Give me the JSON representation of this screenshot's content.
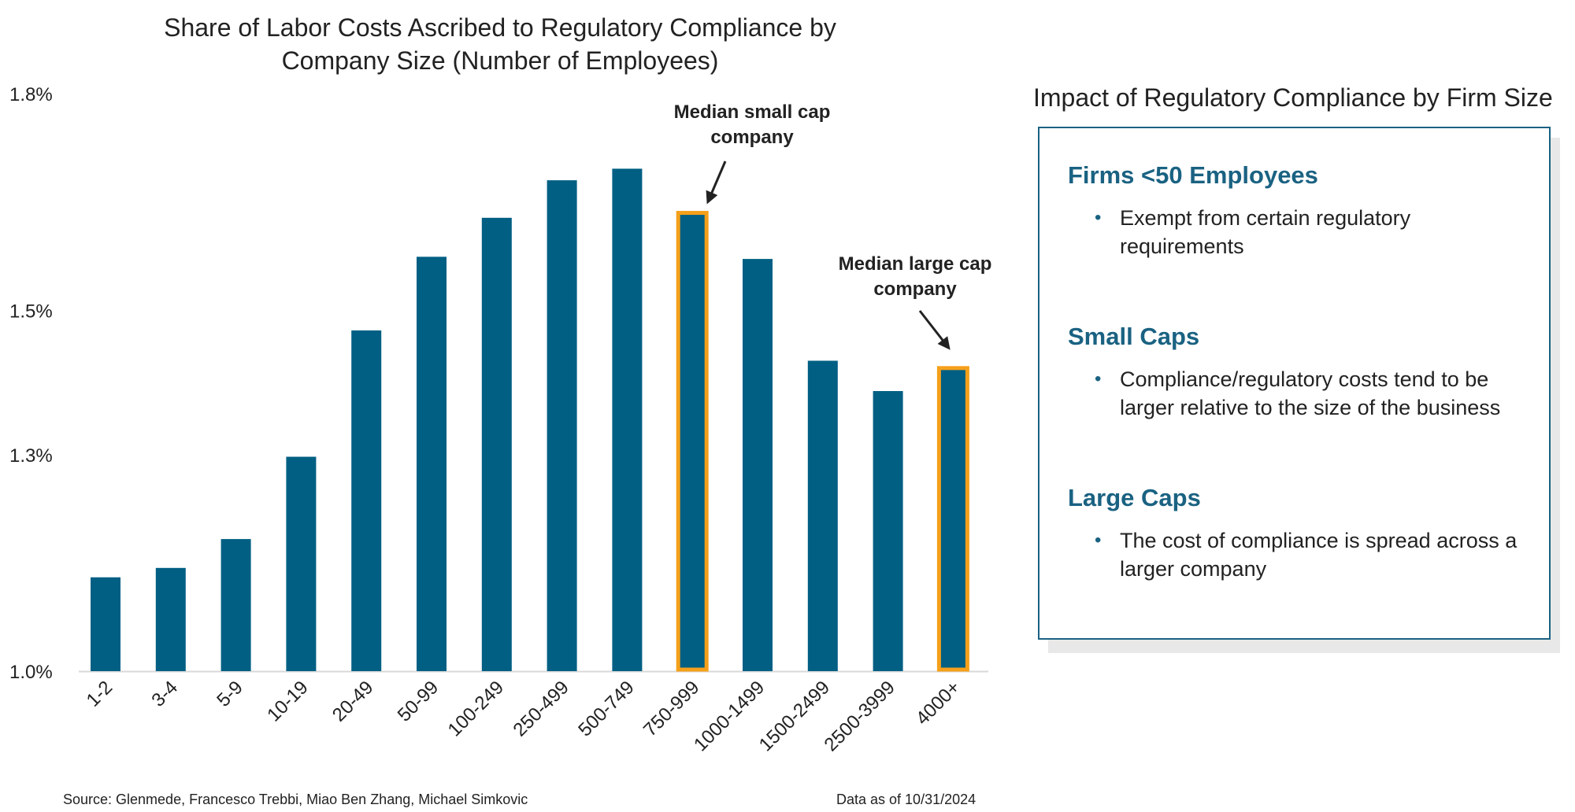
{
  "chart_data": {
    "type": "bar",
    "title": "Share of Labor Costs Ascribed to Regulatory Compliance by Company Size (Number of Employees)",
    "title_lines": [
      "Share of Labor Costs Ascribed to Regulatory Compliance by",
      "Company Size (Number of Employees)"
    ],
    "xlabel": "",
    "ylabel": "",
    "ylim": [
      1.0,
      1.8
    ],
    "yticks": [
      1.0,
      1.3,
      1.5,
      1.8
    ],
    "ytick_labels": [
      "1.0%",
      "1.3%",
      "1.5%",
      "1.8%"
    ],
    "categories": [
      "1-2",
      "3-4",
      "5-9",
      "10-19",
      "20-49",
      "50-99",
      "100-249",
      "250-499",
      "500-749",
      "750-999",
      "1000-1499",
      "1500-2499",
      "2500-3999",
      "4000+"
    ],
    "values": [
      1.13,
      1.143,
      1.183,
      1.297,
      1.472,
      1.574,
      1.628,
      1.68,
      1.696,
      1.637,
      1.571,
      1.43,
      1.388,
      1.422
    ],
    "highlighted": [
      "750-999",
      "4000+"
    ],
    "bar_color": "#005f83",
    "highlight_color": "#f5a01a",
    "annotations": [
      {
        "category": "750-999",
        "lines": [
          "Median small cap",
          "company"
        ]
      },
      {
        "category": "4000+",
        "lines": [
          "Median large cap",
          "company"
        ]
      }
    ]
  },
  "panel": {
    "title": "Impact of Regulatory Compliance by Firm Size",
    "accent_color": "#1a6282",
    "sections": [
      {
        "heading": "Firms <50 Employees",
        "bullet": "Exempt from certain regulatory requirements"
      },
      {
        "heading": "Small Caps",
        "bullet": "Compliance/regulatory costs tend to be larger relative to the size of the business"
      },
      {
        "heading": "Large Caps",
        "bullet": "The cost of compliance is spread across a larger company"
      }
    ],
    "bullet_icon": "bullet-dot"
  },
  "footer": {
    "source": "Source: Glenmede, Francesco Trebbi, Miao Ben Zhang, Michael Simkovic",
    "date": "Data as of 10/31/2024"
  }
}
